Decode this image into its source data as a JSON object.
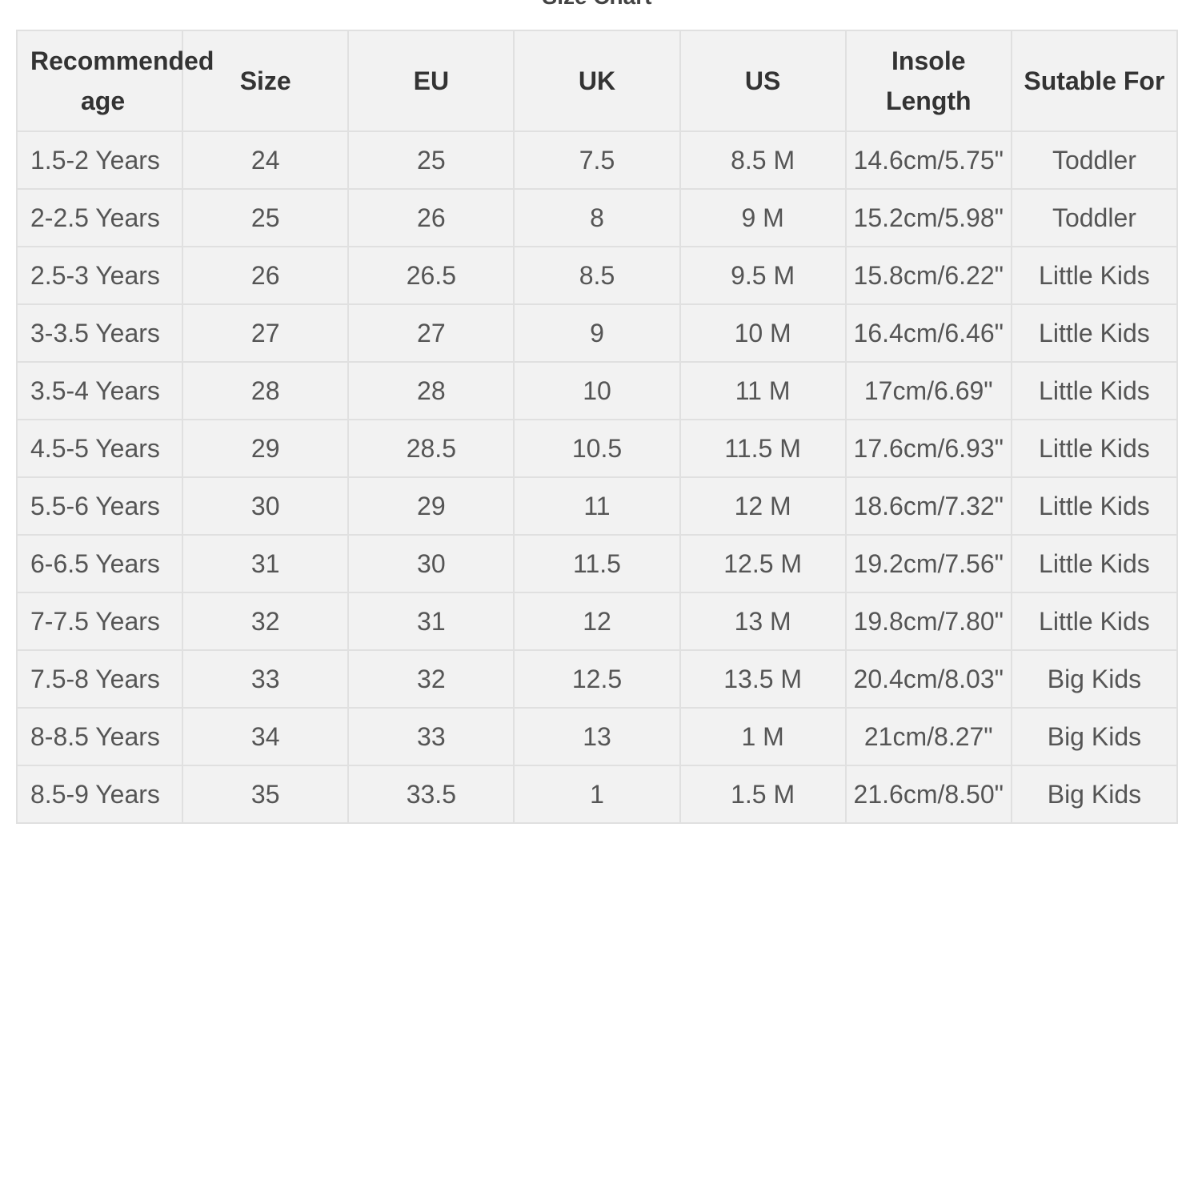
{
  "title": "Size Chart",
  "table": {
    "header": [
      "Recommended age",
      "Size",
      "EU",
      "UK",
      "US",
      "Insole Length",
      "Sutable For"
    ],
    "rows": [
      [
        "1.5-2 Years",
        "24",
        "25",
        "7.5",
        "8.5 M",
        "14.6cm/5.75\"",
        "Toddler"
      ],
      [
        "2-2.5 Years",
        "25",
        "26",
        "8",
        "9 M",
        "15.2cm/5.98\"",
        "Toddler"
      ],
      [
        "2.5-3 Years",
        "26",
        "26.5",
        "8.5",
        "9.5 M",
        "15.8cm/6.22\"",
        "Little Kids"
      ],
      [
        "3-3.5 Years",
        "27",
        "27",
        "9",
        "10 M",
        "16.4cm/6.46\"",
        "Little Kids"
      ],
      [
        "3.5-4 Years",
        "28",
        "28",
        "10",
        "11 M",
        "17cm/6.69\"",
        "Little Kids"
      ],
      [
        "4.5-5 Years",
        "29",
        "28.5",
        "10.5",
        "11.5 M",
        "17.6cm/6.93\"",
        "Little Kids"
      ],
      [
        "5.5-6 Years",
        "30",
        "29",
        "11",
        "12 M",
        "18.6cm/7.32\"",
        "Little Kids"
      ],
      [
        "6-6.5 Years",
        "31",
        "30",
        "11.5",
        "12.5 M",
        "19.2cm/7.56\"",
        "Little Kids"
      ],
      [
        "7-7.5 Years",
        "32",
        "31",
        "12",
        "13 M",
        "19.8cm/7.80\"",
        "Little Kids"
      ],
      [
        "7.5-8 Years",
        "33",
        "32",
        "12.5",
        "13.5 M",
        "20.4cm/8.03\"",
        "Big Kids"
      ],
      [
        "8-8.5 Years",
        "34",
        "33",
        "13",
        "1 M",
        "21cm/8.27\"",
        "Big Kids"
      ],
      [
        "8.5-9 Years",
        "35",
        "33.5",
        "1",
        "1.5 M",
        "21.6cm/8.50\"",
        "Big Kids"
      ]
    ]
  }
}
